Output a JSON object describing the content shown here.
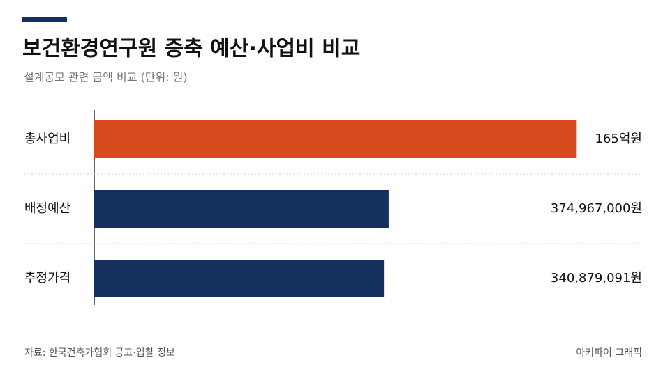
{
  "chart_data": {
    "type": "barh",
    "title": "보건환경연구원 증축 예산·사업비 비교",
    "subtitle": "설계공모 관련 금액 비교 (단위: 원)",
    "categories": [
      "총사업비",
      "배정예산",
      "추정가격"
    ],
    "values": [
      16500000000,
      374967000,
      340879091
    ],
    "value_labels": [
      "165억원",
      "374,967,000원",
      "340,879,091원"
    ],
    "colors": [
      "#d8491e",
      "#15305f",
      "#15305f"
    ],
    "log_scale": true,
    "xlim": [
      1000000,
      20000000000
    ],
    "source": "자료: 한국건축가협회 공고·입찰 정보",
    "credit": "아키파이 그래픽"
  }
}
